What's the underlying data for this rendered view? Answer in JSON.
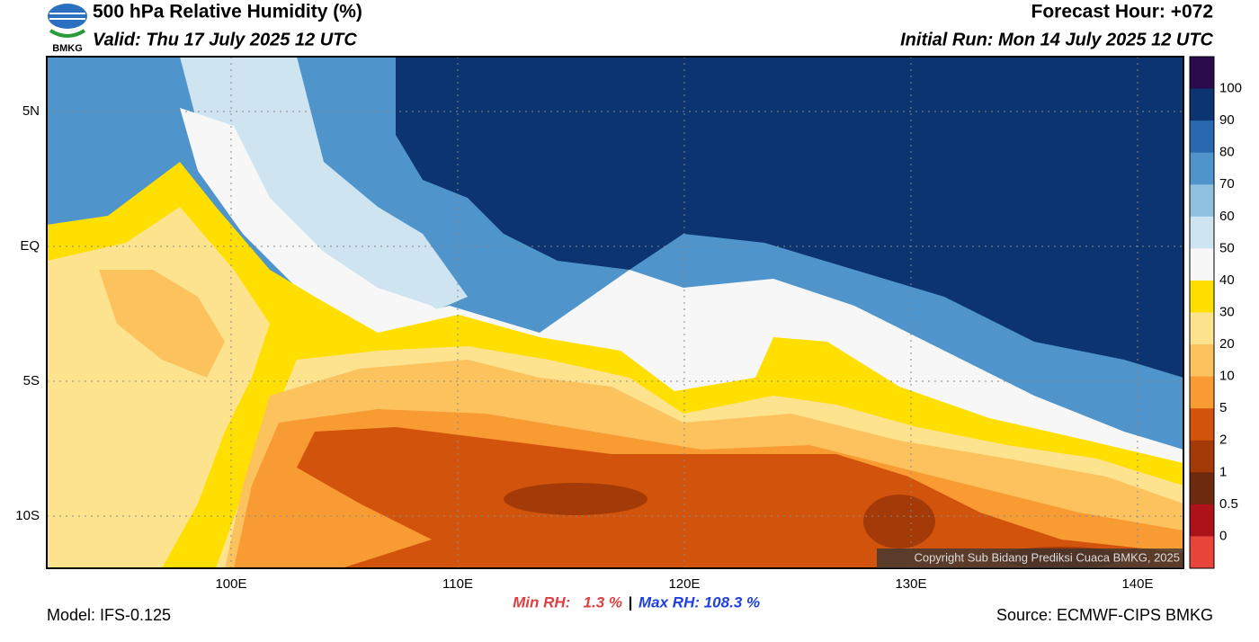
{
  "header": {
    "title": "500 hPa Relative Humidity (%)",
    "valid": "Valid: Thu 17 July 2025 12 UTC",
    "forecast_hour": "Forecast Hour: +072",
    "initial_run": "Initial Run: Mon 14 July 2025 12 UTC",
    "logo_text": "BMKG"
  },
  "map": {
    "lat_labels": [
      "5N",
      "EQ",
      "5S",
      "10S"
    ],
    "lon_labels": [
      "100E",
      "110E",
      "120E",
      "130E",
      "140E"
    ],
    "copyright": "Copyright Sub Bidang Prediksi Cuaca BMKG, 2025"
  },
  "colorbar": {
    "colors": [
      "#2a0a4a",
      "#0b3470",
      "#2a68b0",
      "#4f95cb",
      "#8fc0e0",
      "#cfe4f1",
      "#f7f7f7",
      "#ffdf00",
      "#fde38e",
      "#fcc25e",
      "#f89b32",
      "#d2540c",
      "#a43a08",
      "#6e2a0c",
      "#ad111a",
      "#e8453a"
    ],
    "labels": [
      "100",
      "90",
      "80",
      "70",
      "60",
      "50",
      "40",
      "30",
      "20",
      "10",
      "5",
      "2",
      "1",
      "0.5",
      "0"
    ]
  },
  "footer": {
    "min_rh": "Min RH:   1.3 %",
    "separator": "|",
    "max_rh": "Max RH: 108.3 %",
    "model": "Model: IFS-0.125",
    "source": "Source: ECMWF-CIPS BMKG"
  }
}
